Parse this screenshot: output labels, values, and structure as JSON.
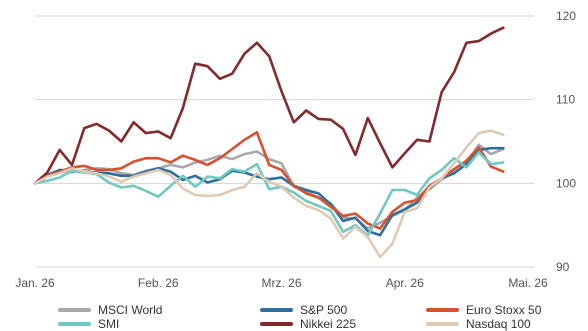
{
  "chart_data": {
    "type": "line",
    "title": "",
    "xlabel": "",
    "ylabel": "",
    "x_ticks": [
      "Jan. 26",
      "Feb. 26",
      "Mrz. 26",
      "Apr. 26",
      "Mai. 26"
    ],
    "x_tick_positions": [
      0,
      1,
      2,
      3,
      4
    ],
    "y_ticks": [
      90,
      100,
      110,
      120
    ],
    "ylim": [
      90,
      120
    ],
    "xlim": [
      0,
      4
    ],
    "grid": "horizontal",
    "y_axis_side": "right",
    "legend_position": "bottom",
    "x": [
      0.0,
      0.1,
      0.2,
      0.3,
      0.4,
      0.5,
      0.6,
      0.7,
      0.8,
      0.9,
      1.0,
      1.1,
      1.2,
      1.3,
      1.4,
      1.5,
      1.6,
      1.7,
      1.8,
      1.9,
      2.0,
      2.1,
      2.2,
      2.3,
      2.4,
      2.5,
      2.6,
      2.7,
      2.8,
      2.9,
      3.0,
      3.1,
      3.2,
      3.3,
      3.4,
      3.5,
      3.6,
      3.7,
      3.8
    ],
    "series": [
      {
        "name": "MSCI World",
        "color": "#a8a8a8",
        "values": [
          100.0,
          100.8,
          101.5,
          101.3,
          101.6,
          101.8,
          101.7,
          101.2,
          101.0,
          101.5,
          101.8,
          102.2,
          101.9,
          102.5,
          102.8,
          103.3,
          102.9,
          103.5,
          103.8,
          102.9,
          102.4,
          99.6,
          99.0,
          98.3,
          97.6,
          95.9,
          95.8,
          94.6,
          95.3,
          96.1,
          96.8,
          98.3,
          99.3,
          100.5,
          101.3,
          102.4,
          104.6,
          103.5,
          104.1
        ]
      },
      {
        "name": "S&P 500",
        "color": "#2e6fa0",
        "values": [
          100.0,
          101.0,
          101.6,
          101.5,
          101.4,
          101.3,
          101.2,
          100.9,
          100.9,
          101.4,
          101.8,
          101.4,
          100.4,
          100.9,
          100.1,
          100.5,
          101.5,
          101.3,
          100.8,
          100.5,
          100.7,
          99.7,
          99.2,
          98.8,
          97.5,
          95.5,
          95.9,
          94.3,
          93.8,
          96.2,
          96.9,
          97.7,
          99.4,
          100.6,
          101.2,
          102.3,
          104.0,
          104.2,
          104.2
        ]
      },
      {
        "name": "Euro Stoxx 50",
        "color": "#d9502f",
        "values": [
          100.0,
          100.9,
          101.4,
          101.9,
          102.1,
          101.6,
          101.6,
          101.8,
          102.6,
          103.0,
          103.0,
          102.5,
          103.3,
          102.8,
          102.2,
          103.0,
          104.1,
          105.2,
          106.1,
          102.2,
          101.6,
          99.7,
          98.8,
          98.3,
          97.2,
          96.1,
          96.4,
          95.2,
          94.6,
          96.6,
          97.7,
          98.0,
          99.7,
          100.6,
          101.7,
          102.7,
          104.3,
          102.0,
          101.4
        ]
      },
      {
        "name": "SMI",
        "color": "#6dc9c1",
        "values": [
          100.0,
          100.3,
          100.7,
          101.5,
          101.3,
          101.1,
          100.1,
          99.5,
          99.7,
          99.1,
          98.4,
          99.7,
          100.9,
          99.6,
          100.8,
          100.6,
          101.7,
          101.4,
          102.3,
          99.3,
          99.6,
          98.9,
          97.9,
          97.3,
          96.7,
          94.2,
          95.0,
          93.8,
          96.4,
          99.2,
          99.2,
          98.6,
          100.6,
          101.6,
          103.0,
          101.9,
          103.7,
          102.3,
          102.5
        ]
      },
      {
        "name": "Nikkei 225",
        "color": "#832a2d",
        "values": [
          100.0,
          101.3,
          104.0,
          102.2,
          106.6,
          107.1,
          106.3,
          105.0,
          107.3,
          106.0,
          106.2,
          105.4,
          109.0,
          114.3,
          114.0,
          112.5,
          113.1,
          115.5,
          116.8,
          115.2,
          111.0,
          107.3,
          108.7,
          107.7,
          107.6,
          106.5,
          103.4,
          107.8,
          104.8,
          101.9,
          103.6,
          105.2,
          105.0,
          110.9,
          113.3,
          116.8,
          117.0,
          117.9,
          118.6
        ]
      },
      {
        "name": "Nasdaq 100",
        "color": "#dfcab4",
        "values": [
          100.0,
          100.8,
          101.2,
          101.8,
          101.4,
          101.2,
          100.8,
          100.2,
          100.8,
          101.2,
          101.6,
          101.0,
          99.4,
          98.6,
          98.5,
          98.6,
          99.2,
          99.6,
          101.2,
          100.2,
          99.6,
          98.3,
          97.3,
          96.8,
          95.8,
          93.4,
          94.8,
          93.6,
          91.2,
          92.8,
          96.6,
          97.0,
          99.5,
          100.6,
          102.4,
          104.3,
          106.0,
          106.3,
          105.8
        ]
      }
    ]
  }
}
